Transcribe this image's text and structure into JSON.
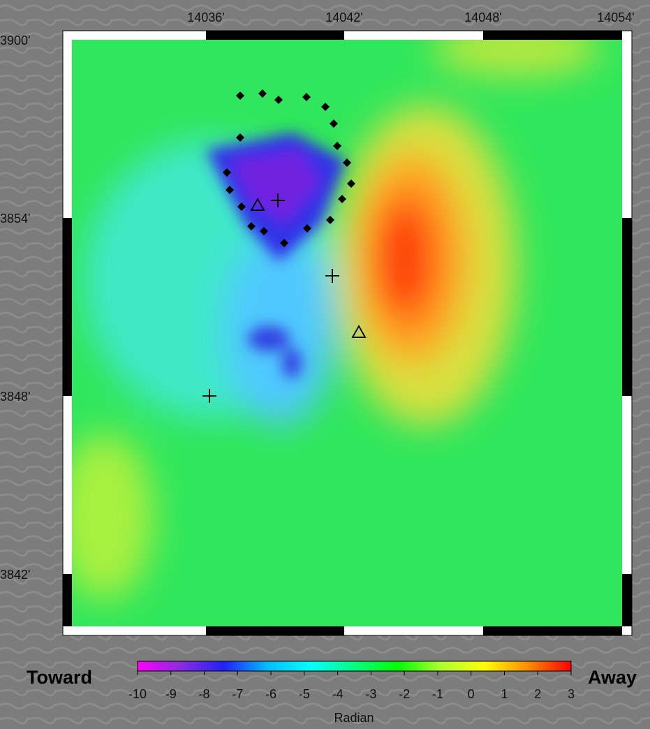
{
  "map": {
    "x_labels": [
      "14036'",
      "14042'",
      "14048'",
      "14054'"
    ],
    "y_labels": [
      "3900'",
      "3854'",
      "3848'",
      "3842'"
    ]
  },
  "colorbar": {
    "lim": [
      -10,
      3
    ],
    "ticks": [
      -10,
      -9,
      -8,
      -7,
      -6,
      -5,
      -4,
      -3,
      -2,
      -1,
      0,
      1,
      2,
      3
    ],
    "colors": [
      "#ff00ff",
      "#8a2be2",
      "#2020ff",
      "#00bfff",
      "#00ffff",
      "#00ff7f",
      "#00ff00",
      "#adff2f",
      "#ffff00",
      "#ff8c00",
      "#ff0000"
    ],
    "label": "Radian",
    "left_label": "Toward",
    "right_label": "Away"
  }
}
